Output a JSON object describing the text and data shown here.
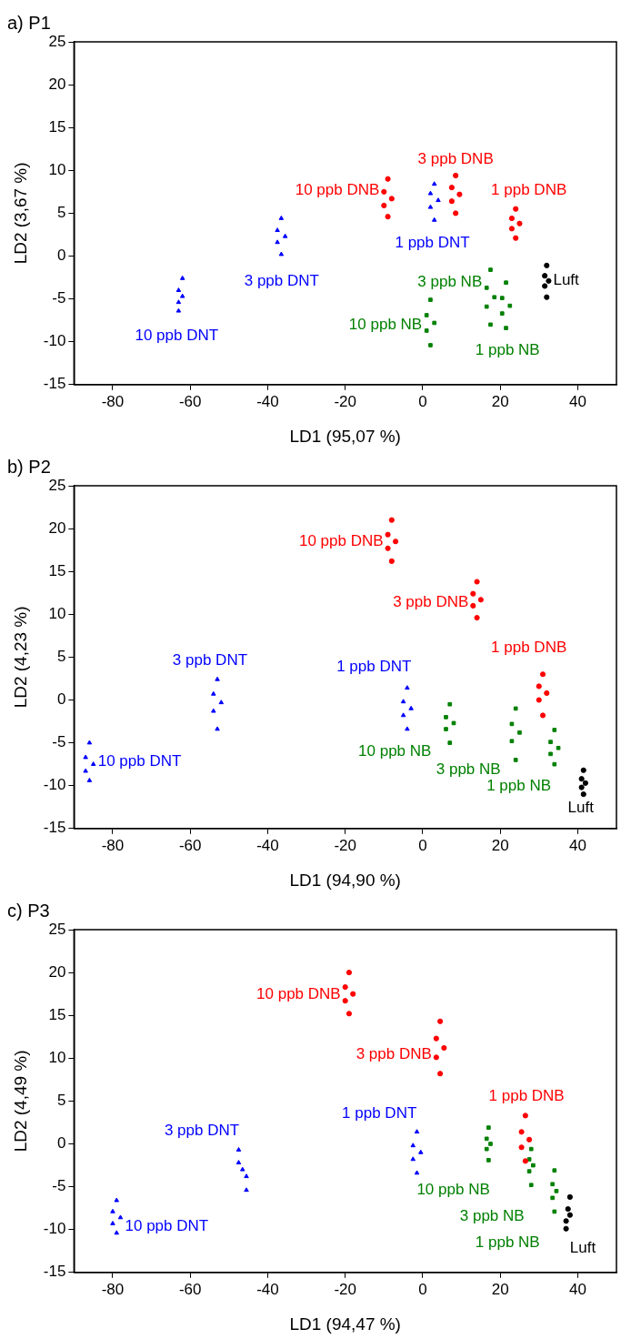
{
  "chart_data": [
    {
      "type": "scatter",
      "title": "a) P1",
      "xlabel": "LD1 (95,07 %)",
      "ylabel": "LD2 (3,67 %)",
      "xlim": [
        -90,
        50
      ],
      "ylim": [
        -15,
        25
      ],
      "xticks": [
        -80,
        -60,
        -40,
        -20,
        0,
        20,
        40
      ],
      "yticks": [
        -15,
        -10,
        -5,
        0,
        5,
        10,
        15,
        20,
        25
      ],
      "grid": false,
      "legend": false,
      "series": [
        {
          "name": "10 ppb DNB",
          "color": "#ff0000",
          "marker": "circle",
          "x": [
            -9,
            -10,
            -8,
            -10,
            -9
          ],
          "values": [
            9,
            7.5,
            6.7,
            5.9,
            4.6
          ]
        },
        {
          "name": "3 ppb DNB",
          "color": "#ff0000",
          "marker": "circle",
          "x": [
            8.5,
            7.5,
            9.5,
            7.5,
            8.5
          ],
          "values": [
            9.4,
            8,
            7.2,
            6.4,
            5
          ]
        },
        {
          "name": "1 ppb DNB",
          "color": "#ff0000",
          "marker": "circle",
          "x": [
            24,
            23,
            25,
            23,
            24
          ],
          "values": [
            5.5,
            4.4,
            3.8,
            3.2,
            2.1
          ]
        },
        {
          "name": "1 ppb DNT",
          "color": "#0000ff",
          "marker": "triangle",
          "x": [
            3,
            2,
            4,
            2,
            3
          ],
          "values": [
            8.4,
            7.3,
            6.5,
            5.7,
            4.2
          ]
        },
        {
          "name": "3 ppb DNT",
          "color": "#0000ff",
          "marker": "triangle",
          "x": [
            -36.5,
            -37.5,
            -35.5,
            -37.5,
            -36.5
          ],
          "values": [
            4.4,
            3,
            2.3,
            1.6,
            0.2
          ]
        },
        {
          "name": "10 ppb DNT",
          "color": "#0000ff",
          "marker": "triangle",
          "x": [
            -62,
            -63,
            -62,
            -63,
            -63
          ],
          "values": [
            -2.6,
            -4,
            -4.7,
            -5.4,
            -6.4
          ]
        },
        {
          "name": "3 ppb NB",
          "color": "#008000",
          "marker": "square",
          "x": [
            17.5,
            16.5,
            18.5,
            16.5,
            17.5
          ],
          "values": [
            -1.6,
            -3.7,
            -4.8,
            -5.9,
            -8
          ]
        },
        {
          "name": "1 ppb NB",
          "color": "#008000",
          "marker": "square",
          "x": [
            21.5,
            20.5,
            22.5,
            20.5,
            21.5
          ],
          "values": [
            -3.1,
            -4.9,
            -5.8,
            -6.7,
            -8.4
          ]
        },
        {
          "name": "10 ppb NB",
          "color": "#008000",
          "marker": "square",
          "x": [
            2,
            1,
            3,
            1,
            2
          ],
          "values": [
            -5.1,
            -6.9,
            -7.8,
            -8.7,
            -10.4
          ]
        },
        {
          "name": "Luft",
          "color": "#000000",
          "marker": "circle",
          "x": [
            32,
            31.5,
            32.5,
            31.5,
            32
          ],
          "values": [
            -1.1,
            -2.3,
            -2.9,
            -3.5,
            -4.8
          ]
        }
      ]
    },
    {
      "type": "scatter",
      "title": "b) P2",
      "xlabel": "LD1 (94,90 %)",
      "ylabel": "LD2 (4,23 %)",
      "xlim": [
        -90,
        50
      ],
      "ylim": [
        -15,
        25
      ],
      "xticks": [
        -80,
        -60,
        -40,
        -20,
        0,
        20,
        40
      ],
      "yticks": [
        -15,
        -10,
        -5,
        0,
        5,
        10,
        15,
        20,
        25
      ],
      "grid": false,
      "legend": false,
      "series": [
        {
          "name": "10 ppb DNB",
          "color": "#ff0000",
          "marker": "circle",
          "x": [
            -8,
            -9,
            -7,
            -9,
            -8
          ],
          "values": [
            21,
            19.3,
            18.5,
            17.7,
            16.2
          ]
        },
        {
          "name": "3 ppb DNB",
          "color": "#ff0000",
          "marker": "circle",
          "x": [
            14,
            13,
            15,
            13,
            14
          ],
          "values": [
            13.8,
            12.4,
            11.7,
            11,
            9.6
          ]
        },
        {
          "name": "1 ppb DNB",
          "color": "#ff0000",
          "marker": "circle",
          "x": [
            31,
            30,
            32,
            30,
            31
          ],
          "values": [
            3,
            1.6,
            0.8,
            0,
            -1.8
          ]
        },
        {
          "name": "1 ppb DNT",
          "color": "#0000ff",
          "marker": "triangle",
          "x": [
            -4,
            -5,
            -3,
            -5,
            -4
          ],
          "values": [
            1.4,
            -0.2,
            -1,
            -1.8,
            -3.4
          ]
        },
        {
          "name": "3 ppb DNT",
          "color": "#0000ff",
          "marker": "triangle",
          "x": [
            -53,
            -54,
            -52,
            -54,
            -53
          ],
          "values": [
            2.4,
            0.7,
            -0.3,
            -1.3,
            -3.4
          ]
        },
        {
          "name": "10 ppb DNT",
          "color": "#0000ff",
          "marker": "triangle",
          "x": [
            -86,
            -87,
            -85,
            -87,
            -86
          ],
          "values": [
            -5,
            -6.7,
            -7.5,
            -8.3,
            -9.4
          ]
        },
        {
          "name": "10 ppb NB",
          "color": "#008000",
          "marker": "square",
          "x": [
            7,
            6,
            8,
            6,
            7
          ],
          "values": [
            -0.5,
            -2,
            -2.7,
            -3.4,
            -5
          ]
        },
        {
          "name": "3 ppb NB",
          "color": "#008000",
          "marker": "square",
          "x": [
            24,
            23,
            25,
            23,
            24
          ],
          "values": [
            -1,
            -2.8,
            -3.8,
            -4.8,
            -7
          ]
        },
        {
          "name": "1 ppb NB",
          "color": "#008000",
          "marker": "square",
          "x": [
            34,
            33,
            35,
            33,
            34
          ],
          "values": [
            -3.5,
            -4.9,
            -5.6,
            -6.3,
            -7.5
          ]
        },
        {
          "name": "Luft",
          "color": "#000000",
          "marker": "circle",
          "x": [
            41.5,
            41,
            42,
            41,
            41.5
          ],
          "values": [
            -8.2,
            -9.2,
            -9.7,
            -10.2,
            -11
          ]
        }
      ]
    },
    {
      "type": "scatter",
      "title": "c) P3",
      "xlabel": "LD1 (94,47 %)",
      "ylabel": "LD2 (4,49 %)",
      "xlim": [
        -90,
        50
      ],
      "ylim": [
        -15,
        25
      ],
      "xticks": [
        -80,
        -60,
        -40,
        -20,
        0,
        20,
        40
      ],
      "yticks": [
        -15,
        -10,
        -5,
        0,
        5,
        10,
        15,
        20,
        25
      ],
      "grid": false,
      "legend": false,
      "series": [
        {
          "name": "10 ppb DNB",
          "color": "#ff0000",
          "marker": "circle",
          "x": [
            -19,
            -20,
            -18,
            -20,
            -19
          ],
          "values": [
            20,
            18.3,
            17.5,
            16.7,
            15.2
          ]
        },
        {
          "name": "3 ppb DNB",
          "color": "#ff0000",
          "marker": "circle",
          "x": [
            4.5,
            3.5,
            5.5,
            3.5,
            4.5
          ],
          "values": [
            14.3,
            12.3,
            11.2,
            10.1,
            8.2
          ]
        },
        {
          "name": "1 ppb DNB",
          "color": "#ff0000",
          "marker": "circle",
          "x": [
            26.5,
            25.5,
            27.5,
            25.5,
            26.5
          ],
          "values": [
            3.3,
            1.4,
            0.5,
            -0.4,
            -2
          ]
        },
        {
          "name": "1 ppb DNT",
          "color": "#0000ff",
          "marker": "triangle",
          "x": [
            -1.5,
            -2.5,
            -0.5,
            -2.5,
            -1.5
          ],
          "values": [
            1.4,
            -0.2,
            -1,
            -1.8,
            -3.4
          ]
        },
        {
          "name": "3 ppb DNT",
          "color": "#0000ff",
          "marker": "triangle",
          "x": [
            -47.5,
            -47.5,
            -46.5,
            -45.5,
            -45.5
          ],
          "values": [
            -0.7,
            -2.2,
            -3,
            -3.8,
            -5.4
          ]
        },
        {
          "name": "10 ppb DNT",
          "color": "#0000ff",
          "marker": "triangle",
          "x": [
            -79,
            -80,
            -78,
            -80,
            -79
          ],
          "values": [
            -6.6,
            -7.9,
            -8.6,
            -9.3,
            -10.4
          ]
        },
        {
          "name": "10 ppb NB",
          "color": "#008000",
          "marker": "square",
          "x": [
            17,
            16.5,
            17.5,
            16.5,
            17
          ],
          "values": [
            1.9,
            0.6,
            0,
            -0.6,
            -1.9
          ]
        },
        {
          "name": "3 ppb NB",
          "color": "#008000",
          "marker": "square",
          "x": [
            28,
            27.5,
            28.5,
            27.5,
            28
          ],
          "values": [
            -0.6,
            -1.8,
            -2.5,
            -3.2,
            -4.8
          ]
        },
        {
          "name": "1 ppb NB",
          "color": "#008000",
          "marker": "square",
          "x": [
            34,
            33.5,
            34.5,
            33.5,
            34
          ],
          "values": [
            -3.1,
            -4.7,
            -5.5,
            -6.3,
            -7.9
          ]
        },
        {
          "name": "Luft",
          "color": "#000000",
          "marker": "circle",
          "x": [
            38,
            37.5,
            38,
            37,
            37
          ],
          "values": [
            -6.2,
            -7.6,
            -8.3,
            -9,
            -9.9
          ]
        }
      ]
    }
  ]
}
